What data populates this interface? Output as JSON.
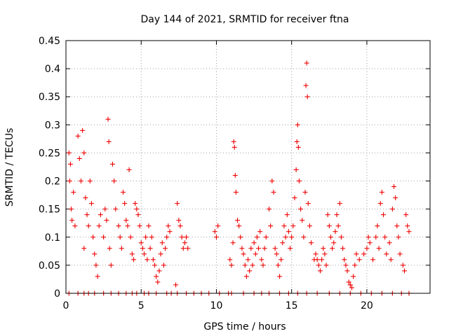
{
  "chart_data": {
    "type": "scatter",
    "title": "Day 144 of 2021, SRMTID for receiver ftna",
    "xlabel": "GPS time / hours",
    "ylabel": "SRMTID / TECUs",
    "xlim": [
      0,
      24.2
    ],
    "ylim": [
      0,
      0.45
    ],
    "x_ticks": [
      "0",
      "5",
      "10",
      "15",
      "20"
    ],
    "y_ticks": [
      "0",
      "0.05",
      "0.1",
      "0.15",
      "0.2",
      "0.25",
      "0.3",
      "0.35",
      "0.4",
      "0.45"
    ],
    "grid": true,
    "marker": "+",
    "series": [
      {
        "name": "SRMTID",
        "color": "#ee0000",
        "points": [
          [
            0.2,
            0.25
          ],
          [
            0.25,
            0.2
          ],
          [
            0.3,
            0.23
          ],
          [
            0.35,
            0.15
          ],
          [
            0.4,
            0.13
          ],
          [
            0.5,
            0.18
          ],
          [
            0.6,
            0.12
          ],
          [
            0.8,
            0.28
          ],
          [
            0.9,
            0.24
          ],
          [
            1.0,
            0.2
          ],
          [
            1.1,
            0.29
          ],
          [
            1.2,
            0.25
          ],
          [
            1.2,
            0.08
          ],
          [
            1.3,
            0.17
          ],
          [
            1.4,
            0.14
          ],
          [
            1.5,
            0.12
          ],
          [
            1.6,
            0.2
          ],
          [
            1.7,
            0.16
          ],
          [
            1.8,
            0.1
          ],
          [
            1.9,
            0.07
          ],
          [
            2.0,
            0.05
          ],
          [
            2.1,
            0.03
          ],
          [
            2.2,
            0.12
          ],
          [
            2.3,
            0.14
          ],
          [
            2.5,
            0.1
          ],
          [
            2.6,
            0.15
          ],
          [
            2.7,
            0.13
          ],
          [
            2.8,
            0.31
          ],
          [
            2.85,
            0.27
          ],
          [
            2.9,
            0.08
          ],
          [
            3.0,
            0.05
          ],
          [
            3.1,
            0.23
          ],
          [
            3.2,
            0.2
          ],
          [
            3.3,
            0.15
          ],
          [
            3.5,
            0.12
          ],
          [
            3.6,
            0.1
          ],
          [
            3.7,
            0.08
          ],
          [
            3.8,
            0.18
          ],
          [
            3.9,
            0.16
          ],
          [
            4.0,
            0.13
          ],
          [
            4.1,
            0.12
          ],
          [
            4.2,
            0.22
          ],
          [
            4.3,
            0.1
          ],
          [
            4.4,
            0.07
          ],
          [
            4.5,
            0.06
          ],
          [
            4.6,
            0.16
          ],
          [
            4.7,
            0.15
          ],
          [
            4.8,
            0.14
          ],
          [
            4.9,
            0.12
          ],
          [
            5.0,
            0.09
          ],
          [
            5.1,
            0.08
          ],
          [
            5.2,
            0.07
          ],
          [
            5.3,
            0.1
          ],
          [
            5.4,
            0.06
          ],
          [
            5.5,
            0.12
          ],
          [
            5.6,
            0.08
          ],
          [
            5.7,
            0.1
          ],
          [
            5.8,
            0.06
          ],
          [
            5.9,
            0.05
          ],
          [
            6.0,
            0.03
          ],
          [
            6.1,
            0.02
          ],
          [
            6.2,
            0.04
          ],
          [
            6.3,
            0.07
          ],
          [
            6.4,
            0.09
          ],
          [
            6.5,
            0.05
          ],
          [
            6.6,
            0.08
          ],
          [
            6.7,
            0.1
          ],
          [
            6.8,
            0.12
          ],
          [
            6.9,
            0.11
          ],
          [
            7.4,
            0.16
          ],
          [
            7.5,
            0.13
          ],
          [
            7.6,
            0.12
          ],
          [
            7.7,
            0.1
          ],
          [
            7.8,
            0.08
          ],
          [
            7.9,
            0.09
          ],
          [
            8.0,
            0.1
          ],
          [
            8.1,
            0.08
          ],
          [
            7.3,
            0.015
          ],
          [
            9.9,
            0.11
          ],
          [
            10.0,
            0.1
          ],
          [
            10.1,
            0.12
          ],
          [
            10.9,
            0.06
          ],
          [
            11.0,
            0.05
          ],
          [
            11.1,
            0.09
          ],
          [
            11.15,
            0.27
          ],
          [
            11.2,
            0.26
          ],
          [
            11.25,
            0.21
          ],
          [
            11.3,
            0.18
          ],
          [
            11.4,
            0.13
          ],
          [
            11.5,
            0.12
          ],
          [
            11.6,
            0.1
          ],
          [
            11.7,
            0.08
          ],
          [
            11.8,
            0.07
          ],
          [
            11.9,
            0.05
          ],
          [
            12.0,
            0.03
          ],
          [
            12.1,
            0.06
          ],
          [
            12.2,
            0.04
          ],
          [
            12.3,
            0.08
          ],
          [
            12.4,
            0.05
          ],
          [
            12.5,
            0.09
          ],
          [
            12.6,
            0.07
          ],
          [
            12.7,
            0.1
          ],
          [
            12.8,
            0.08
          ],
          [
            12.9,
            0.11
          ],
          [
            13.0,
            0.06
          ],
          [
            13.1,
            0.05
          ],
          [
            13.2,
            0.08
          ],
          [
            13.3,
            0.1
          ],
          [
            13.5,
            0.15
          ],
          [
            13.6,
            0.12
          ],
          [
            13.7,
            0.2
          ],
          [
            13.8,
            0.18
          ],
          [
            13.9,
            0.08
          ],
          [
            14.0,
            0.07
          ],
          [
            14.1,
            0.05
          ],
          [
            14.2,
            0.03
          ],
          [
            14.3,
            0.06
          ],
          [
            14.4,
            0.09
          ],
          [
            14.5,
            0.12
          ],
          [
            14.6,
            0.1
          ],
          [
            14.7,
            0.14
          ],
          [
            14.8,
            0.11
          ],
          [
            14.9,
            0.08
          ],
          [
            15.0,
            0.1
          ],
          [
            15.1,
            0.12
          ],
          [
            15.2,
            0.17
          ],
          [
            15.3,
            0.22
          ],
          [
            15.35,
            0.27
          ],
          [
            15.4,
            0.3
          ],
          [
            15.45,
            0.26
          ],
          [
            15.5,
            0.2
          ],
          [
            15.6,
            0.15
          ],
          [
            15.7,
            0.13
          ],
          [
            15.8,
            0.1
          ],
          [
            15.9,
            0.18
          ],
          [
            15.95,
            0.37
          ],
          [
            16.0,
            0.41
          ],
          [
            16.05,
            0.35
          ],
          [
            16.1,
            0.16
          ],
          [
            16.2,
            0.12
          ],
          [
            16.3,
            0.09
          ],
          [
            16.5,
            0.06
          ],
          [
            16.6,
            0.07
          ],
          [
            16.7,
            0.06
          ],
          [
            16.8,
            0.05
          ],
          [
            16.9,
            0.04
          ],
          [
            17.0,
            0.06
          ],
          [
            17.1,
            0.08
          ],
          [
            17.2,
            0.07
          ],
          [
            17.3,
            0.05
          ],
          [
            17.4,
            0.14
          ],
          [
            17.5,
            0.12
          ],
          [
            17.6,
            0.1
          ],
          [
            17.7,
            0.08
          ],
          [
            17.8,
            0.09
          ],
          [
            17.9,
            0.11
          ],
          [
            18.0,
            0.14
          ],
          [
            18.1,
            0.12
          ],
          [
            18.2,
            0.16
          ],
          [
            18.3,
            0.1
          ],
          [
            18.4,
            0.08
          ],
          [
            18.5,
            0.06
          ],
          [
            18.6,
            0.05
          ],
          [
            18.7,
            0.04
          ],
          [
            18.8,
            0.02
          ],
          [
            18.9,
            0.015
          ],
          [
            19.0,
            0.01
          ],
          [
            19.1,
            0.03
          ],
          [
            19.2,
            0.05
          ],
          [
            19.3,
            0.07
          ],
          [
            19.5,
            0.06
          ],
          [
            19.8,
            0.07
          ],
          [
            20.0,
            0.08
          ],
          [
            20.1,
            0.1
          ],
          [
            20.2,
            0.09
          ],
          [
            20.4,
            0.06
          ],
          [
            20.6,
            0.1
          ],
          [
            20.7,
            0.12
          ],
          [
            20.8,
            0.08
          ],
          [
            20.9,
            0.16
          ],
          [
            21.0,
            0.18
          ],
          [
            21.1,
            0.14
          ],
          [
            21.2,
            0.1
          ],
          [
            21.3,
            0.07
          ],
          [
            21.5,
            0.09
          ],
          [
            21.6,
            0.06
          ],
          [
            21.7,
            0.15
          ],
          [
            21.8,
            0.19
          ],
          [
            21.9,
            0.17
          ],
          [
            22.0,
            0.12
          ],
          [
            22.1,
            0.1
          ],
          [
            22.2,
            0.07
          ],
          [
            22.4,
            0.05
          ],
          [
            22.5,
            0.04
          ],
          [
            22.6,
            0.14
          ],
          [
            22.7,
            0.12
          ],
          [
            22.8,
            0.11
          ],
          [
            0.2,
            0
          ],
          [
            0.8,
            0
          ],
          [
            1.2,
            0
          ],
          [
            1.5,
            0
          ],
          [
            1.9,
            0
          ],
          [
            2.5,
            0
          ],
          [
            3.0,
            0
          ],
          [
            3.5,
            0
          ],
          [
            4.0,
            0
          ],
          [
            4.4,
            0
          ],
          [
            4.7,
            0
          ],
          [
            5.2,
            0
          ],
          [
            5.5,
            0
          ],
          [
            6.0,
            0
          ],
          [
            6.7,
            0
          ],
          [
            7.0,
            0
          ],
          [
            7.4,
            0
          ],
          [
            8.0,
            0
          ],
          [
            8.5,
            0
          ],
          [
            9.0,
            0
          ],
          [
            9.5,
            0
          ],
          [
            10.2,
            0
          ],
          [
            10.8,
            0
          ],
          [
            11.0,
            0
          ],
          [
            11.8,
            0
          ],
          [
            12.5,
            0
          ],
          [
            13.0,
            0
          ],
          [
            13.5,
            0
          ],
          [
            14.2,
            0
          ],
          [
            14.8,
            0
          ],
          [
            15.4,
            0
          ],
          [
            16.0,
            0
          ],
          [
            16.7,
            0
          ],
          [
            17.5,
            0
          ],
          [
            18.2,
            0
          ],
          [
            18.9,
            0
          ],
          [
            19.6,
            0
          ],
          [
            20.3,
            0
          ],
          [
            21.0,
            0
          ],
          [
            21.7,
            0
          ],
          [
            22.3,
            0
          ],
          [
            22.8,
            0
          ]
        ]
      }
    ]
  }
}
